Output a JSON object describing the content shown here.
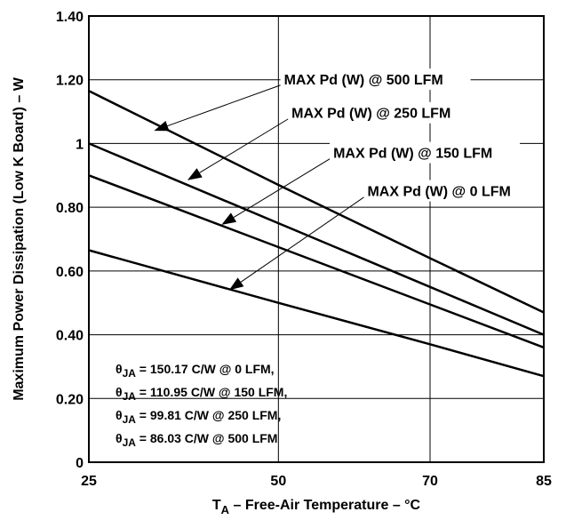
{
  "chart_data": {
    "type": "line",
    "xlabel_main": "T",
    "xlabel_sub": "A",
    "xlabel_rest": " – Free-Air Temperature – °C",
    "ylabel": "Maximum Power Dissipation (Low K Board) – W",
    "xlim": [
      25,
      85
    ],
    "ylim": [
      0,
      1.4
    ],
    "x_ticks": [
      {
        "value": 25,
        "label": "25"
      },
      {
        "value": 50,
        "label": "50"
      },
      {
        "value": 70,
        "label": "70"
      },
      {
        "value": 85,
        "label": "85"
      }
    ],
    "y_ticks": [
      {
        "value": 0,
        "label": "0"
      },
      {
        "value": 0.2,
        "label": "0.20"
      },
      {
        "value": 0.4,
        "label": "0.40"
      },
      {
        "value": 0.6,
        "label": "0.60"
      },
      {
        "value": 0.8,
        "label": "0.80"
      },
      {
        "value": 1.0,
        "label": "1"
      },
      {
        "value": 1.2,
        "label": "1.20"
      },
      {
        "value": 1.4,
        "label": "1.40"
      }
    ],
    "grid": true,
    "series": [
      {
        "name": "MAX Pd (W) @ 500 LFM",
        "x": [
          25,
          50,
          70,
          85
        ],
        "y": [
          1.165,
          0.87,
          0.64,
          0.47
        ]
      },
      {
        "name": "MAX Pd (W) @ 250 LFM",
        "x": [
          25,
          50,
          70,
          85
        ],
        "y": [
          1.0,
          0.75,
          0.55,
          0.4
        ]
      },
      {
        "name": "MAX Pd (W) @ 150 LFM",
        "x": [
          25,
          50,
          70,
          85
        ],
        "y": [
          0.9,
          0.675,
          0.495,
          0.36
        ]
      },
      {
        "name": "MAX Pd (W) @ 0 LFM",
        "x": [
          25,
          50,
          70,
          85
        ],
        "y": [
          0.665,
          0.5,
          0.37,
          0.27
        ]
      }
    ],
    "annotations": [
      {
        "text": "MAX Pd (W) @ 500 LFM",
        "anchor_x": 50.5,
        "anchor_y": 1.185,
        "target_x": 33.6,
        "target_y": 1.04
      },
      {
        "text": "MAX Pd (W) @ 250 LFM",
        "anchor_x": 51.5,
        "anchor_y": 1.08,
        "target_x": 38.0,
        "target_y": 0.885
      },
      {
        "text": "MAX Pd (W) @ 150 LFM",
        "anchor_x": 57.0,
        "anchor_y": 0.955,
        "target_x": 42.5,
        "target_y": 0.745
      },
      {
        "text": "MAX Pd (W) @ 0 LFM",
        "anchor_x": 61.5,
        "anchor_y": 0.835,
        "target_x": 43.5,
        "target_y": 0.54
      }
    ],
    "theta_notes": [
      {
        "symbol": "θ",
        "sub": "JA",
        "text": " = 150.17 C/W @ 0 LFM,"
      },
      {
        "symbol": "θ",
        "sub": "JA",
        "text": " = 110.95 C/W @ 150 LFM,"
      },
      {
        "symbol": "θ",
        "sub": "JA",
        "text": " = 99.81 C/W @ 250 LFM,"
      },
      {
        "symbol": "θ",
        "sub": "JA",
        "text": " = 86.03 C/W @ 500 LFM"
      }
    ]
  }
}
